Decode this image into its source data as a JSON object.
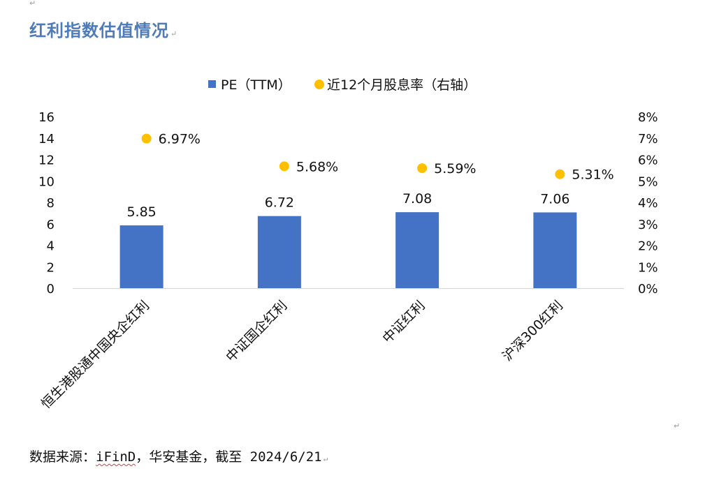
{
  "document": {
    "heading": "红利指数估值情况",
    "paragraph_mark": "↵",
    "source_label": "数据来源：",
    "source_brand": "iFinD",
    "source_rest": "，华安基金，截至 2024/6/21"
  },
  "chart_data": {
    "type": "bar",
    "title": "",
    "categories": [
      "恒生港股通中国央企红利",
      "中证国企红利",
      "中证红利",
      "沪深300红利"
    ],
    "series": [
      {
        "name": "PE（TTM）",
        "axis": "left",
        "kind": "bar",
        "color": "#4472c4",
        "values": [
          5.85,
          6.72,
          7.08,
          7.06
        ],
        "labels": [
          "5.85",
          "6.72",
          "7.08",
          "7.06"
        ]
      },
      {
        "name": "近12个月股息率（右轴）",
        "axis": "right",
        "kind": "scatter",
        "color": "#ffc000",
        "values": [
          6.97,
          5.68,
          5.59,
          5.31
        ],
        "labels": [
          "6.97%",
          "5.68%",
          "5.59%",
          "5.31%"
        ]
      }
    ],
    "y_left": {
      "range": [
        0,
        16
      ],
      "ticks": [
        "0",
        "2",
        "4",
        "6",
        "8",
        "10",
        "12",
        "14",
        "16"
      ]
    },
    "y_right": {
      "range": [
        0,
        8
      ],
      "ticks": [
        "0%",
        "1%",
        "2%",
        "3%",
        "4%",
        "5%",
        "6%",
        "7%",
        "8%"
      ]
    },
    "legend_position": "top-center",
    "grid": false
  }
}
